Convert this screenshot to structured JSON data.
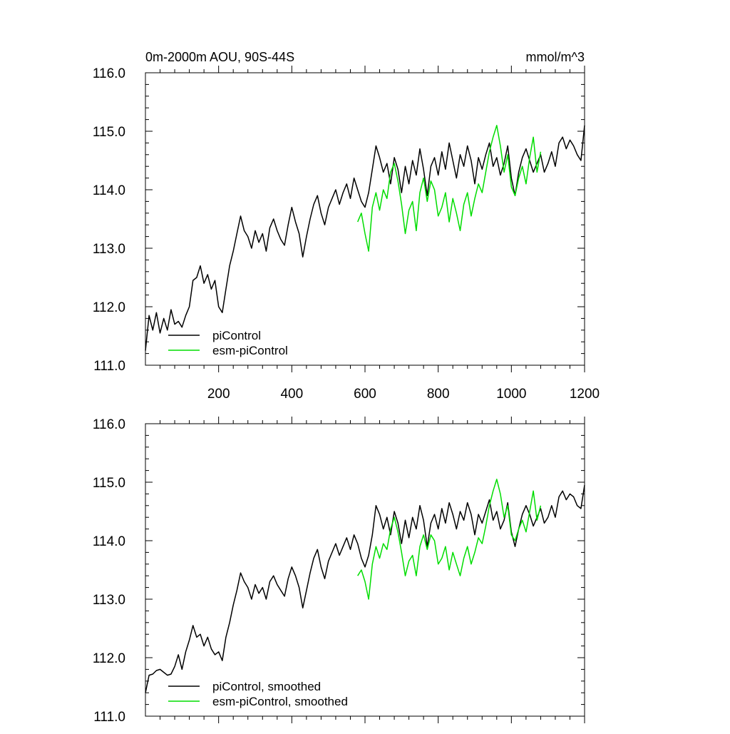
{
  "chart_data": [
    {
      "type": "line",
      "title_left": "0m-2000m AOU, 90S-44S",
      "title_right": "mmol/m^3",
      "xlim": [
        0,
        1200
      ],
      "ylim": [
        111.0,
        116.0
      ],
      "x_ticks": [
        200,
        400,
        600,
        800,
        1000,
        1200
      ],
      "x_tick_labels": [
        "200",
        "400",
        "600",
        "800",
        "1000",
        "1200"
      ],
      "y_ticks": [
        111,
        112,
        113,
        114,
        115,
        116
      ],
      "y_tick_labels": [
        "111.0",
        "112.0",
        "113.0",
        "114.0",
        "115.0",
        "116.0"
      ],
      "legend": "bottom-left",
      "series": [
        {
          "name": "piControl",
          "color": "#000000",
          "x": [
            0,
            10,
            20,
            30,
            40,
            50,
            60,
            70,
            80,
            90,
            100,
            110,
            120,
            130,
            140,
            150,
            160,
            170,
            180,
            190,
            200,
            210,
            220,
            230,
            240,
            250,
            260,
            270,
            280,
            290,
            300,
            310,
            320,
            330,
            340,
            350,
            360,
            370,
            380,
            390,
            400,
            410,
            420,
            430,
            440,
            450,
            460,
            470,
            480,
            490,
            500,
            510,
            520,
            530,
            540,
            550,
            560,
            570,
            580,
            590,
            600,
            610,
            620,
            630,
            640,
            650,
            660,
            670,
            680,
            690,
            700,
            710,
            720,
            730,
            740,
            750,
            760,
            770,
            780,
            790,
            800,
            810,
            820,
            830,
            840,
            850,
            860,
            870,
            880,
            890,
            900,
            910,
            920,
            930,
            940,
            950,
            960,
            970,
            980,
            990,
            1000,
            1010,
            1020,
            1030,
            1040,
            1050,
            1060,
            1070,
            1080,
            1090,
            1100,
            1110,
            1120,
            1130,
            1140,
            1150,
            1160,
            1170,
            1180,
            1190,
            1200
          ],
          "values": [
            111.25,
            111.85,
            111.6,
            111.9,
            111.55,
            111.8,
            111.6,
            111.95,
            111.7,
            111.75,
            111.65,
            111.85,
            112.0,
            112.45,
            112.5,
            112.7,
            112.4,
            112.55,
            112.3,
            112.45,
            112.0,
            111.9,
            112.3,
            112.7,
            112.95,
            113.25,
            113.55,
            113.3,
            113.2,
            113.0,
            113.3,
            113.1,
            113.25,
            112.95,
            113.35,
            113.5,
            113.3,
            113.15,
            113.05,
            113.4,
            113.7,
            113.45,
            113.25,
            112.85,
            113.2,
            113.5,
            113.75,
            113.9,
            113.6,
            113.4,
            113.7,
            113.85,
            114.0,
            113.75,
            113.95,
            114.1,
            113.85,
            114.2,
            114.0,
            113.8,
            113.7,
            113.95,
            114.35,
            114.75,
            114.55,
            114.3,
            114.45,
            114.1,
            114.55,
            114.35,
            113.95,
            114.4,
            114.1,
            114.5,
            114.25,
            114.7,
            114.35,
            113.9,
            114.4,
            114.55,
            114.25,
            114.65,
            114.35,
            114.8,
            114.5,
            114.2,
            114.6,
            114.4,
            114.75,
            114.5,
            114.1,
            114.55,
            114.35,
            114.6,
            114.8,
            114.4,
            114.55,
            114.25,
            114.45,
            114.75,
            114.2,
            113.9,
            114.3,
            114.55,
            114.7,
            114.5,
            114.3,
            114.45,
            114.6,
            114.3,
            114.45,
            114.65,
            114.4,
            114.8,
            114.9,
            114.7,
            114.85,
            114.75,
            114.6,
            114.5,
            115.1
          ]
        },
        {
          "name": "esm-piControl",
          "color": "#00dd00",
          "x": [
            580,
            590,
            600,
            610,
            620,
            630,
            640,
            650,
            660,
            670,
            680,
            690,
            700,
            710,
            720,
            730,
            740,
            750,
            760,
            770,
            780,
            790,
            800,
            810,
            820,
            830,
            840,
            850,
            860,
            870,
            880,
            890,
            900,
            910,
            920,
            930,
            940,
            950,
            960,
            970,
            980,
            990,
            1000,
            1010,
            1020,
            1030,
            1040,
            1050,
            1060,
            1070,
            1080
          ],
          "values": [
            113.45,
            113.6,
            113.25,
            112.95,
            113.7,
            113.95,
            113.65,
            114.0,
            113.85,
            114.3,
            114.45,
            114.15,
            113.75,
            113.25,
            113.65,
            113.8,
            113.3,
            113.95,
            114.2,
            113.8,
            114.15,
            114.0,
            113.55,
            113.7,
            113.95,
            113.45,
            113.85,
            113.6,
            113.3,
            113.75,
            113.95,
            113.55,
            113.85,
            114.1,
            113.95,
            114.3,
            114.65,
            114.9,
            115.1,
            114.75,
            114.3,
            114.6,
            114.05,
            113.9,
            114.2,
            114.4,
            114.1,
            114.55,
            114.9,
            114.3,
            114.65
          ]
        }
      ],
      "legend_entries": [
        "piControl",
        "esm-piControl"
      ]
    },
    {
      "type": "line",
      "xlim": [
        0,
        1200
      ],
      "ylim": [
        111.0,
        116.0
      ],
      "x_ticks": [
        200,
        400,
        600,
        800,
        1000,
        1200
      ],
      "y_ticks": [
        111,
        112,
        113,
        114,
        115,
        116
      ],
      "y_tick_labels": [
        "111.0",
        "112.0",
        "113.0",
        "114.0",
        "115.0",
        "116.0"
      ],
      "legend": "bottom-left",
      "series": [
        {
          "name": "piControl, smoothed",
          "color": "#000000",
          "x": [
            0,
            10,
            20,
            30,
            40,
            50,
            60,
            70,
            80,
            90,
            100,
            110,
            120,
            130,
            140,
            150,
            160,
            170,
            180,
            190,
            200,
            210,
            220,
            230,
            240,
            250,
            260,
            270,
            280,
            290,
            300,
            310,
            320,
            330,
            340,
            350,
            360,
            370,
            380,
            390,
            400,
            410,
            420,
            430,
            440,
            450,
            460,
            470,
            480,
            490,
            500,
            510,
            520,
            530,
            540,
            550,
            560,
            570,
            580,
            590,
            600,
            610,
            620,
            630,
            640,
            650,
            660,
            670,
            680,
            690,
            700,
            710,
            720,
            730,
            740,
            750,
            760,
            770,
            780,
            790,
            800,
            810,
            820,
            830,
            840,
            850,
            860,
            870,
            880,
            890,
            900,
            910,
            920,
            930,
            940,
            950,
            960,
            970,
            980,
            990,
            1000,
            1010,
            1020,
            1030,
            1040,
            1050,
            1060,
            1070,
            1080,
            1090,
            1100,
            1110,
            1120,
            1130,
            1140,
            1150,
            1160,
            1170,
            1180,
            1190,
            1200
          ],
          "values": [
            111.4,
            111.7,
            111.72,
            111.78,
            111.8,
            111.75,
            111.7,
            111.72,
            111.85,
            112.05,
            111.8,
            112.1,
            112.3,
            112.55,
            112.35,
            112.4,
            112.2,
            112.35,
            112.15,
            112.05,
            112.1,
            111.95,
            112.35,
            112.6,
            112.9,
            113.15,
            113.45,
            113.3,
            113.2,
            113.0,
            113.25,
            113.1,
            113.2,
            113.0,
            113.3,
            113.4,
            113.25,
            113.15,
            113.05,
            113.35,
            113.55,
            113.4,
            113.2,
            112.85,
            113.15,
            113.45,
            113.7,
            113.85,
            113.55,
            113.35,
            113.65,
            113.8,
            113.95,
            113.75,
            113.9,
            114.05,
            113.85,
            114.1,
            113.95,
            113.7,
            113.55,
            113.75,
            114.1,
            114.6,
            114.45,
            114.2,
            114.4,
            114.1,
            114.5,
            114.3,
            113.95,
            114.35,
            114.05,
            114.4,
            114.2,
            114.6,
            114.35,
            113.9,
            114.3,
            114.45,
            114.2,
            114.55,
            114.3,
            114.65,
            114.45,
            114.2,
            114.5,
            114.35,
            114.65,
            114.45,
            114.1,
            114.45,
            114.3,
            114.5,
            114.7,
            114.35,
            114.5,
            114.2,
            114.35,
            114.65,
            114.15,
            113.9,
            114.2,
            114.45,
            114.6,
            114.45,
            114.25,
            114.4,
            114.55,
            114.3,
            114.4,
            114.6,
            114.4,
            114.75,
            114.85,
            114.7,
            114.8,
            114.75,
            114.6,
            114.55,
            114.95
          ]
        },
        {
          "name": "esm-piControl, smoothed",
          "color": "#00dd00",
          "x": [
            580,
            590,
            600,
            610,
            620,
            630,
            640,
            650,
            660,
            670,
            680,
            690,
            700,
            710,
            720,
            730,
            740,
            750,
            760,
            770,
            780,
            790,
            800,
            810,
            820,
            830,
            840,
            850,
            860,
            870,
            880,
            890,
            900,
            910,
            920,
            930,
            940,
            950,
            960,
            970,
            980,
            990,
            1000,
            1010,
            1020,
            1030,
            1040,
            1050,
            1060,
            1070,
            1080
          ],
          "values": [
            113.4,
            113.5,
            113.3,
            113.0,
            113.6,
            113.9,
            113.7,
            113.95,
            113.85,
            114.2,
            114.4,
            114.15,
            113.8,
            113.4,
            113.65,
            113.75,
            113.4,
            113.9,
            114.1,
            113.85,
            114.1,
            114.0,
            113.6,
            113.7,
            113.9,
            113.5,
            113.8,
            113.6,
            113.4,
            113.7,
            113.9,
            113.6,
            113.8,
            114.05,
            113.95,
            114.25,
            114.6,
            114.85,
            115.05,
            114.8,
            114.4,
            114.6,
            114.1,
            114.0,
            114.2,
            114.35,
            114.15,
            114.5,
            114.85,
            114.35,
            114.6
          ]
        }
      ],
      "legend_entries": [
        "piControl, smoothed",
        "esm-piControl, smoothed"
      ]
    }
  ]
}
